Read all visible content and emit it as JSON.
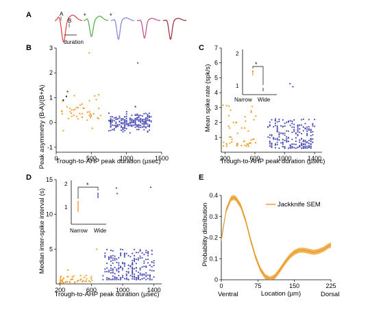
{
  "colors": {
    "narrow": "#f39a1f",
    "wide": "#4d4fb8",
    "black": "#111111",
    "sem_fill": "#f3b04d",
    "sem_line": "#d88a16",
    "waveforms": [
      "#e23a3a",
      "#52a845",
      "#7f7fd8",
      "#c2478f",
      "#9a2630"
    ]
  },
  "panels": {
    "A": {
      "label": "A",
      "marker_a": "A",
      "marker_b": "B",
      "duration_label": "duration",
      "star": "*"
    },
    "B": {
      "label": "B",
      "ylabel": "Peak asymmetry (B-A)/(B+A)",
      "xlabel": "Trough-to-AHP peak duration (µsec)",
      "star": "*"
    },
    "C": {
      "label": "C",
      "ylabel": "Mean spike rate (spk/s)",
      "xlabel": "Trough-to-AHP peak duration (µsec)",
      "inset": {
        "yticks": [
          "2",
          "1"
        ],
        "narrow_label": "Narrow",
        "wide_label": "Wide",
        "star": "*"
      }
    },
    "D": {
      "label": "D",
      "ylabel": "Median inter-spike interval (s)",
      "xlabel": "Trough-to-AHP peak duration (µsec)",
      "inset": {
        "yticks": [
          "2",
          "1"
        ],
        "narrow_label": "Narrow",
        "wide_label": "Wide",
        "star": "*"
      }
    },
    "E": {
      "label": "E",
      "ylabel": "Probability distribution",
      "xlabel": "Location (µm)",
      "left_label": "Ventral",
      "right_label": "Dorsal",
      "legend": "Jackknife SEM"
    }
  },
  "chart_data": [
    {
      "panel": "B",
      "type": "scatter",
      "xlim": [
        0,
        1500
      ],
      "ylim": [
        -1.2,
        3.0
      ],
      "xticks": [
        0,
        500,
        1000,
        1500
      ],
      "yticks": [
        -1,
        0,
        1,
        2,
        3
      ],
      "narrow_cluster": {
        "x_range": [
          80,
          650
        ],
        "y_mean": 0.4,
        "n": 45,
        "outlier": [
          470,
          2.8
        ]
      },
      "wide_cluster": {
        "x_range": [
          750,
          1350
        ],
        "y_mean": 0.0,
        "n": 230,
        "outlier": [
          1160,
          2.4
        ]
      },
      "black_points": [
        [
          145,
          1.05
        ],
        [
          100,
          0.9
        ],
        [
          770,
          0.05
        ]
      ]
    },
    {
      "panel": "C",
      "type": "scatter",
      "xlim": [
        150,
        1500
      ],
      "ylim": [
        0,
        7
      ],
      "xticks": [
        200,
        600,
        1000,
        1400
      ],
      "yticks": [
        1,
        2,
        3,
        4,
        5,
        6,
        7
      ],
      "narrow_cluster": {
        "x_range": [
          170,
          620
        ],
        "y_mean": 1.3,
        "n": 50
      },
      "wide_cluster": {
        "x_range": [
          780,
          1400
        ],
        "y_mean": 0.9,
        "n": 230,
        "outliers": [
          [
            1070,
            4.6
          ],
          [
            1110,
            4.4
          ]
        ]
      },
      "inset": {
        "ylim": [
          0.8,
          2.2
        ],
        "narrow_mean": 1.3,
        "wide_mean": 1.0
      }
    },
    {
      "panel": "D",
      "type": "scatter",
      "xlim": [
        150,
        1500
      ],
      "ylim": [
        0,
        15
      ],
      "xticks": [
        200,
        600,
        1000,
        1400
      ],
      "yticks": [
        5,
        10,
        15
      ],
      "narrow_cluster": {
        "x_range": [
          170,
          620
        ],
        "y_mean": 0.5,
        "n": 45,
        "outliers": [
          [
            300,
            2.0
          ],
          [
            670,
            5.0
          ]
        ]
      },
      "wide_cluster": {
        "x_range": [
          750,
          1400
        ],
        "y_mean": 2.0,
        "n": 230,
        "outliers": [
          [
            920,
            13.8
          ],
          [
            1360,
            13.9
          ],
          [
            930,
            13.0
          ]
        ]
      },
      "inset": {
        "ylim": [
          0.7,
          2.1
        ],
        "narrow_range": [
          0.85,
          1.35
        ],
        "wide_range": [
          1.65,
          1.95
        ]
      }
    },
    {
      "panel": "E",
      "type": "line",
      "xlim": [
        0,
        225
      ],
      "ylim": [
        0,
        0.4
      ],
      "xticks": [
        0,
        75,
        150,
        225
      ],
      "yticks": [
        0,
        0.1,
        0.2,
        0.3,
        0.4
      ],
      "x": [
        0,
        10,
        20,
        25,
        30,
        40,
        50,
        60,
        70,
        80,
        90,
        100,
        110,
        120,
        130,
        140,
        150,
        160,
        170,
        180,
        190,
        200,
        210,
        220,
        225
      ],
      "y": [
        0.19,
        0.33,
        0.385,
        0.39,
        0.385,
        0.35,
        0.28,
        0.19,
        0.11,
        0.05,
        0.015,
        0.003,
        0.015,
        0.045,
        0.08,
        0.11,
        0.13,
        0.14,
        0.14,
        0.135,
        0.13,
        0.135,
        0.145,
        0.16,
        0.165
      ],
      "sem_halfwidth": 0.012
    }
  ]
}
